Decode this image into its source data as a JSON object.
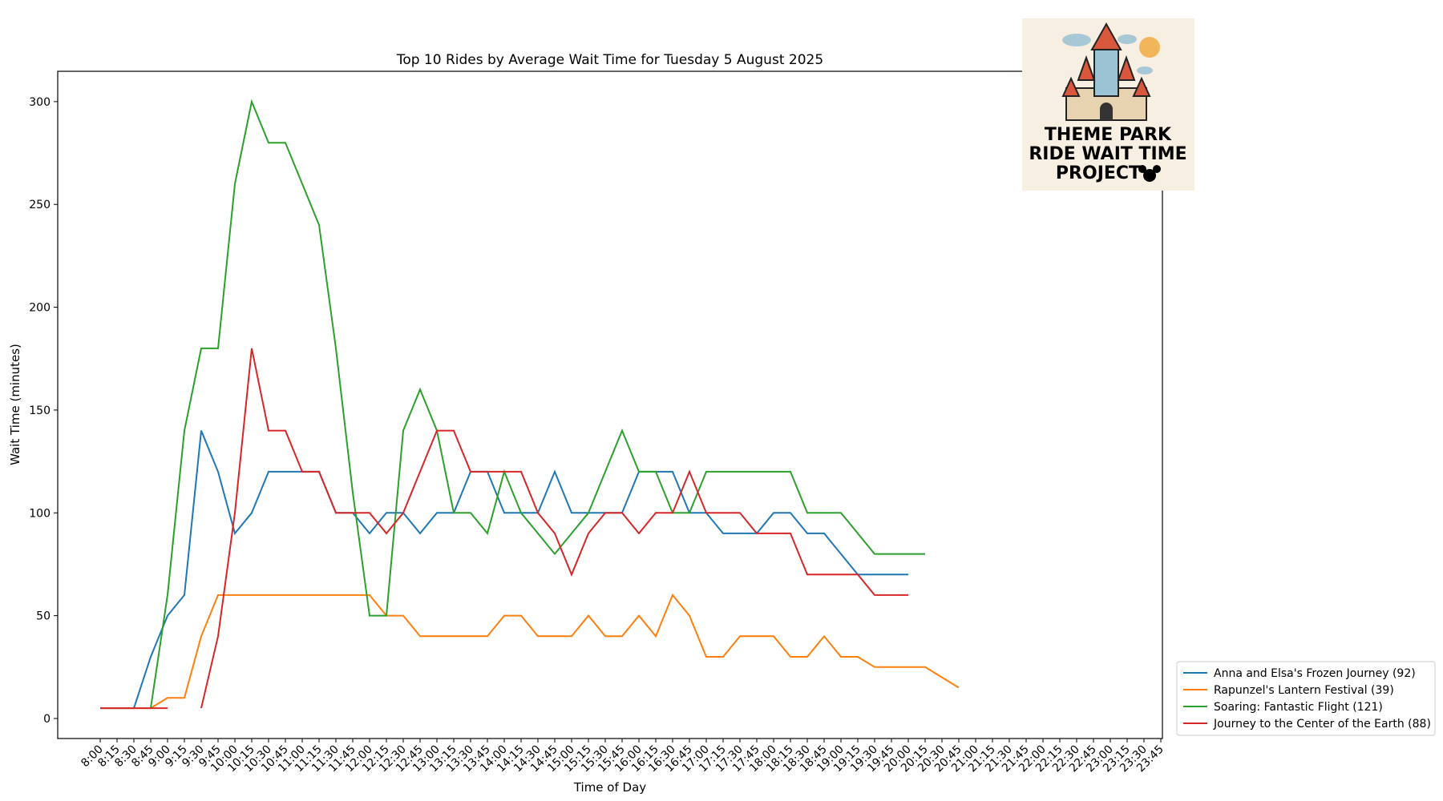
{
  "chart_data": {
    "type": "line",
    "title": "Top 10 Rides by Average Wait Time for Tuesday 5 August 2025",
    "x_label": "Time of Day",
    "y_label": "Wait Time (minutes)",
    "categories": [
      "8:00",
      "8:15",
      "8:30",
      "8:45",
      "9:00",
      "9:15",
      "9:30",
      "9:45",
      "10:00",
      "10:15",
      "10:30",
      "10:45",
      "11:00",
      "11:15",
      "11:30",
      "11:45",
      "12:00",
      "12:15",
      "12:30",
      "12:45",
      "13:00",
      "13:15",
      "13:30",
      "13:45",
      "14:00",
      "14:15",
      "14:30",
      "14:45",
      "15:00",
      "15:15",
      "15:30",
      "15:45",
      "16:00",
      "16:15",
      "16:30",
      "16:45",
      "17:00",
      "17:15",
      "17:30",
      "17:45",
      "18:00",
      "18:15",
      "18:30",
      "18:45",
      "19:00",
      "19:15",
      "19:30",
      "19:45",
      "20:00",
      "20:15",
      "20:30",
      "20:45",
      "21:00",
      "21:15",
      "21:30",
      "21:45",
      "22:00",
      "22:15",
      "22:30",
      "22:45",
      "23:00",
      "23:15",
      "23:30",
      "23:45"
    ],
    "series": [
      {
        "name": "Anna and Elsa's Frozen Journey (92)",
        "color": "#1f77b4",
        "values": [
          5,
          5,
          5,
          30,
          50,
          60,
          140,
          120,
          90,
          100,
          120,
          120,
          120,
          120,
          100,
          100,
          90,
          100,
          100,
          90,
          100,
          100,
          120,
          120,
          100,
          100,
          100,
          120,
          100,
          100,
          100,
          100,
          120,
          120,
          120,
          100,
          100,
          90,
          90,
          90,
          100,
          100,
          90,
          90,
          80,
          70,
          70,
          70,
          70,
          null,
          null,
          null,
          null,
          null,
          null,
          null,
          null,
          null,
          null,
          null,
          null,
          null,
          null,
          null
        ]
      },
      {
        "name": "Rapunzel's Lantern Festival (39)",
        "color": "#ff7f0e",
        "values": [
          5,
          5,
          5,
          5,
          10,
          10,
          40,
          60,
          60,
          60,
          60,
          60,
          60,
          60,
          60,
          60,
          60,
          50,
          50,
          40,
          40,
          40,
          40,
          40,
          50,
          50,
          40,
          40,
          40,
          50,
          40,
          40,
          50,
          40,
          60,
          50,
          30,
          30,
          40,
          40,
          40,
          30,
          30,
          40,
          30,
          30,
          25,
          25,
          25,
          25,
          20,
          15,
          null,
          null,
          null,
          null,
          null,
          null,
          null,
          null,
          null,
          null,
          null,
          null
        ]
      },
      {
        "name": "Soaring: Fantastic Flight (121)",
        "color": "#2ca02c",
        "values": [
          null,
          null,
          null,
          5,
          60,
          140,
          180,
          180,
          260,
          300,
          280,
          280,
          260,
          240,
          180,
          110,
          50,
          50,
          140,
          160,
          140,
          100,
          100,
          90,
          120,
          100,
          90,
          80,
          90,
          100,
          120,
          140,
          120,
          120,
          100,
          100,
          120,
          120,
          120,
          120,
          120,
          120,
          100,
          100,
          100,
          90,
          80,
          80,
          80,
          80,
          null,
          null,
          null,
          null,
          null,
          null,
          null,
          null,
          null,
          null,
          null,
          null,
          null,
          null
        ]
      },
      {
        "name": "Journey to the Center of the Earth (88)",
        "color": "#d62728",
        "values": [
          5,
          5,
          5,
          5,
          5,
          null,
          5,
          40,
          100,
          180,
          140,
          140,
          120,
          120,
          100,
          100,
          100,
          90,
          100,
          120,
          140,
          140,
          120,
          120,
          120,
          120,
          100,
          90,
          70,
          90,
          100,
          100,
          90,
          100,
          100,
          120,
          100,
          100,
          100,
          90,
          90,
          90,
          70,
          70,
          70,
          70,
          60,
          60,
          60,
          null,
          null,
          null,
          null,
          null,
          null,
          null,
          null,
          null,
          null,
          null,
          null,
          null,
          null,
          null
        ]
      }
    ],
    "ylim": [
      -9.75,
      314.75
    ],
    "yticks": [
      0,
      50,
      100,
      150,
      200,
      250,
      300
    ],
    "legend": "lower right outside"
  },
  "logo": {
    "lines": [
      "THEME PARK",
      "RIDE WAIT TIME",
      "PROJECT"
    ]
  }
}
